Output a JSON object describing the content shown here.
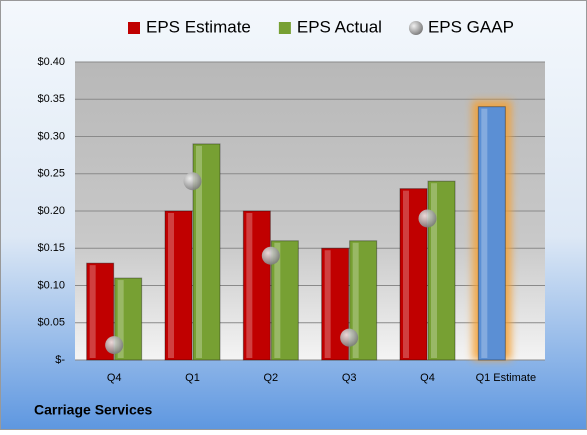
{
  "chart_data": {
    "type": "bar",
    "title": "Carriage Services",
    "categories": [
      "Q4",
      "Q1",
      "Q2",
      "Q3",
      "Q4",
      "Q1 Estimate"
    ],
    "series": [
      {
        "name": "EPS Estimate",
        "color": "#c00000",
        "colors": [
          "#c00000",
          "#c00000",
          "#c00000",
          "#c00000",
          "#c00000",
          "#5b8fd4"
        ],
        "values": [
          0.13,
          0.2,
          0.2,
          0.15,
          0.23,
          0.34
        ]
      },
      {
        "name": "EPS Actual",
        "color": "#77a033",
        "values": [
          0.11,
          0.29,
          0.16,
          0.16,
          0.24,
          null
        ]
      },
      {
        "name": "EPS GAAP",
        "color": "#a0a0a0",
        "marker": "circle",
        "values": [
          0.02,
          0.24,
          0.14,
          0.03,
          0.19,
          null
        ]
      }
    ],
    "ylim": [
      0,
      0.4
    ],
    "yticks": [
      {
        "value": 0,
        "label": "$-"
      },
      {
        "value": 0.05,
        "label": "$0.05"
      },
      {
        "value": 0.1,
        "label": "$0.10"
      },
      {
        "value": 0.15,
        "label": "$0.15"
      },
      {
        "value": 0.2,
        "label": "$0.20"
      },
      {
        "value": 0.25,
        "label": "$0.25"
      },
      {
        "value": 0.3,
        "label": "$0.30"
      },
      {
        "value": 0.35,
        "label": "$0.35"
      },
      {
        "value": 0.4,
        "label": "$0.40"
      }
    ],
    "grid": true,
    "legend": "top"
  }
}
